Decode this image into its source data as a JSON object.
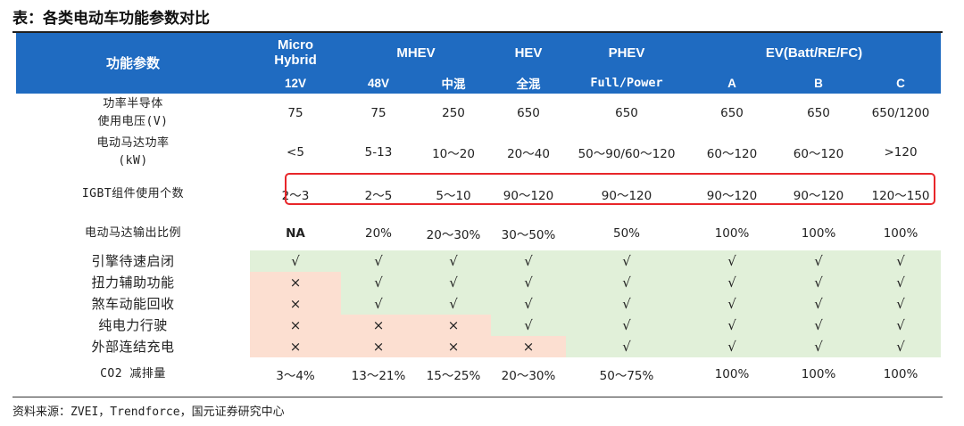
{
  "title": "表：各类电动车功能参数对比",
  "header": {
    "param_label": "功能参数",
    "groups": [
      {
        "label": "Micro\nHybrid"
      },
      {
        "label": "MHEV"
      },
      {
        "label": "HEV"
      },
      {
        "label": "PHEV"
      },
      {
        "label": "EV(Batt/RE/FC)"
      }
    ],
    "sub": [
      "12V",
      "48V",
      "中混",
      "全混",
      "Full/Power",
      "A",
      "B",
      "C"
    ]
  },
  "rows": {
    "voltage": {
      "label": "功率半导体\n使用电压(V)",
      "values": [
        "75",
        "75",
        "250",
        "650",
        "650",
        "650",
        "650",
        "650/1200"
      ]
    },
    "motor_power": {
      "label": "电动马达功率\n(kW)",
      "values": [
        "<5",
        "5-13",
        "10～20",
        "20～40",
        "50～90/60～120",
        "60～120",
        "60～120",
        ">120"
      ]
    },
    "igbt": {
      "label": "IGBT组件使用个数",
      "values": [
        "2～3",
        "2～5",
        "5～10",
        "90～120",
        "90～120",
        "90～120",
        "90～120",
        "120～150"
      ]
    },
    "motor_ratio": {
      "label": "电动马达输出比例",
      "values": [
        "NA",
        "20%",
        "20～30%",
        "30～50%",
        "50%",
        "100%",
        "100%",
        "100%"
      ]
    },
    "features": [
      {
        "label": "引擎待速启闭",
        "values": [
          "√",
          "√",
          "√",
          "√",
          "√",
          "√",
          "√",
          "√"
        ]
      },
      {
        "label": "扭力辅助功能",
        "values": [
          "×",
          "√",
          "√",
          "√",
          "√",
          "√",
          "√",
          "√"
        ]
      },
      {
        "label": "煞车动能回收",
        "values": [
          "×",
          "√",
          "√",
          "√",
          "√",
          "√",
          "√",
          "√"
        ]
      },
      {
        "label": "纯电力行驶",
        "values": [
          "×",
          "×",
          "×",
          "√",
          "√",
          "√",
          "√",
          "√"
        ]
      },
      {
        "label": "外部连结充电",
        "values": [
          "×",
          "×",
          "×",
          "×",
          "√",
          "√",
          "√",
          "√"
        ]
      }
    ],
    "co2": {
      "label": "CO2 减排量",
      "values": [
        "3～4%",
        "13～21%",
        "15～25%",
        "20～30%",
        "50～75%",
        "100%",
        "100%",
        "100%"
      ]
    }
  },
  "source": "资料来源：ZVEI，Trendforce，国元证券研究中心",
  "colors": {
    "header_bg": "#1f6bc1",
    "check_bg": "#e1f0d9",
    "cross_bg": "#fcdfd1",
    "highlight": "#e8262a"
  }
}
